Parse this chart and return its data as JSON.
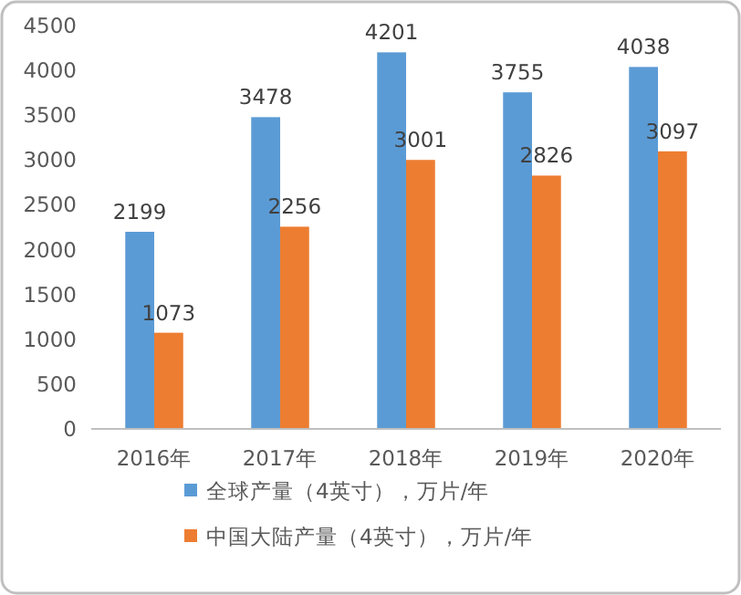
{
  "chart_data": {
    "type": "bar",
    "categories": [
      "2016年",
      "2017年",
      "2018年",
      "2019年",
      "2020年"
    ],
    "series": [
      {
        "name": "全球产量（4英寸），万片/年",
        "color": "#5b9bd5",
        "values": [
          2199,
          3478,
          4201,
          3755,
          4038
        ]
      },
      {
        "name": "中国大陆产量（4英寸），万片/年",
        "color": "#ed7d31",
        "values": [
          1073,
          2256,
          3001,
          2826,
          3097
        ]
      }
    ],
    "ylim": [
      0,
      4500
    ],
    "yticks": [
      0,
      500,
      1000,
      1500,
      2000,
      2500,
      3000,
      3500,
      4000,
      4500
    ],
    "data_labels": true,
    "legend": "bottom"
  }
}
